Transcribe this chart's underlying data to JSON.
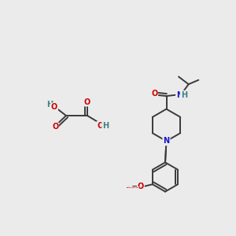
{
  "bg_color": "#ebebeb",
  "bond_color": "#3a3a3a",
  "bond_width": 1.4,
  "atom_colors": {
    "O": "#cc0000",
    "N": "#1414cc",
    "H": "#3d8080"
  },
  "font_size": 7.0,
  "fig_width": 3.0,
  "fig_height": 3.0,
  "dpi": 100
}
